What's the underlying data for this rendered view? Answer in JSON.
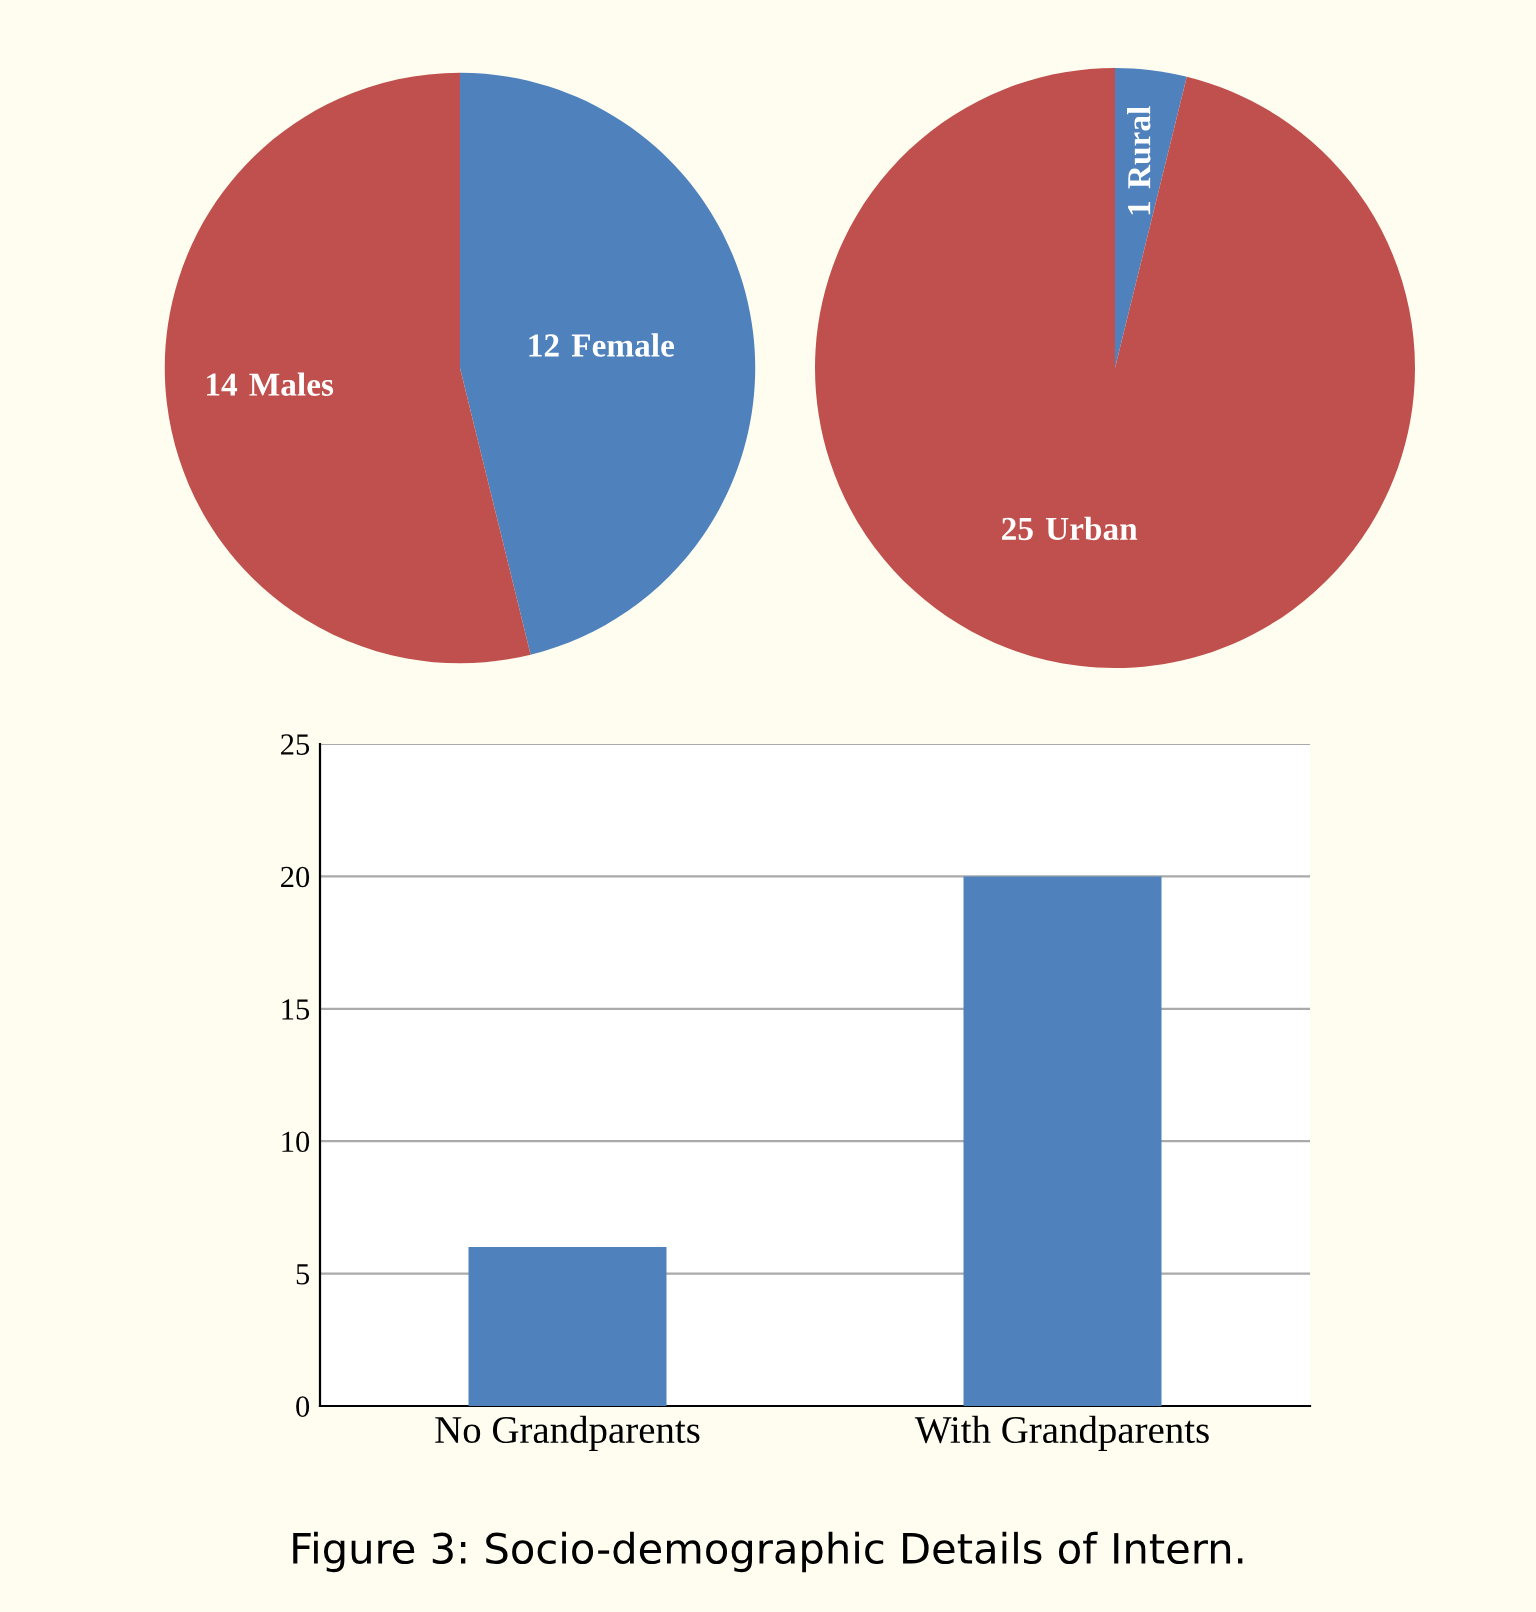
{
  "chart_data": [
    {
      "type": "pie",
      "categories": [
        "Female",
        "Males"
      ],
      "values": [
        12,
        14
      ],
      "colors": [
        "#4f81bd",
        "#c0504d"
      ],
      "data_labels": true,
      "legend": false
    },
    {
      "type": "pie",
      "categories": [
        "Rural",
        "Urban"
      ],
      "values": [
        1,
        25
      ],
      "colors": [
        "#4f81bd",
        "#c0504d"
      ],
      "data_labels": true,
      "legend": false
    },
    {
      "type": "bar",
      "categories": [
        "No Grandparents",
        "With Grandparents"
      ],
      "values": [
        6,
        20
      ],
      "color": "#4f81bd",
      "ylim": [
        0,
        25
      ],
      "yticks": [
        0,
        5,
        10,
        15,
        20,
        25
      ],
      "grid": "y",
      "legend": false,
      "annotations": [
        "Figure 3: Socio-demographic Details of Intern."
      ]
    }
  ]
}
